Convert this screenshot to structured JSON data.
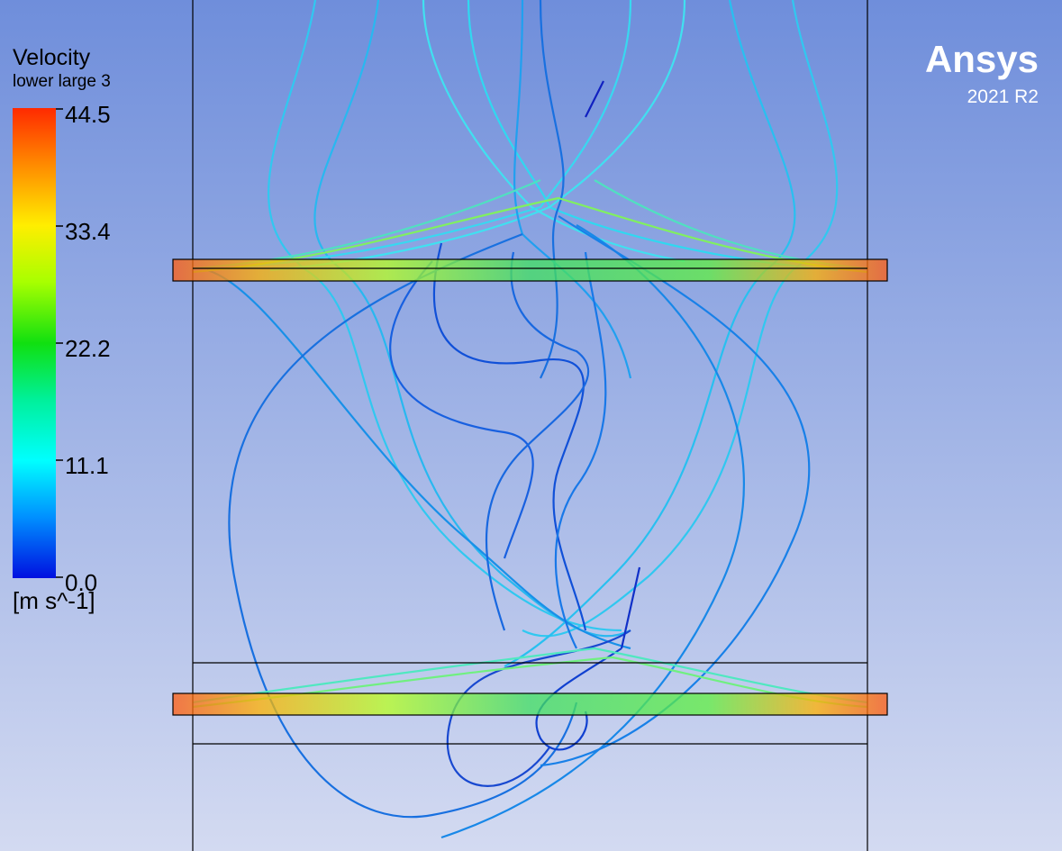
{
  "legend": {
    "title": "Velocity",
    "variable": "lower large 3",
    "ticks": [
      "44.5",
      "33.4",
      "22.2",
      "11.1",
      "0.0"
    ],
    "unit": "[m s^-1]"
  },
  "brand": {
    "name": "Ansys",
    "version": "2021 R2"
  }
}
